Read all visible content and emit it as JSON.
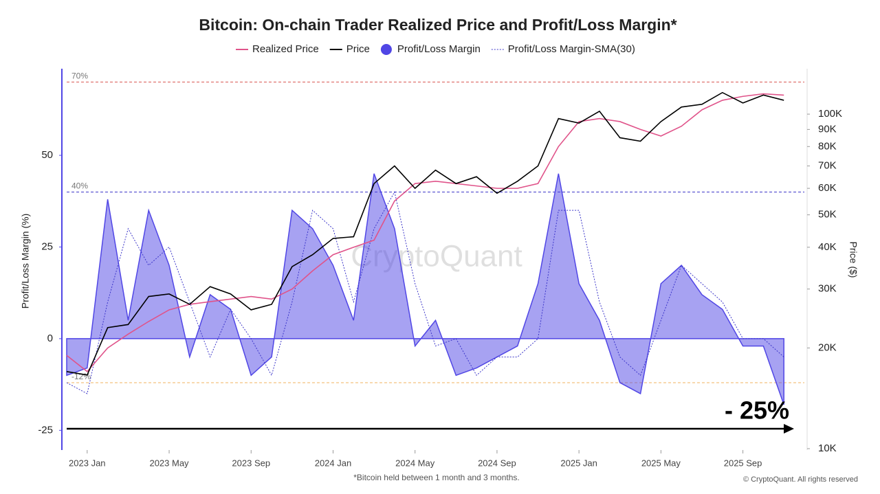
{
  "chart_data": {
    "type": "line",
    "title": "Bitcoin: On-chain Trader Realized Price and Profit/Loss Margin*",
    "y_label": "Profit/Loss Margin (%)",
    "y2_label": "Price ($)",
    "footnote": "*Bitcoin held between 1 month and 3 months.",
    "copyright": "© CryptoQuant. All rights reserved",
    "watermark": "CryptoQuant",
    "annotation": "- 25%",
    "x": [
      "2022-12",
      "2023-01",
      "2023-02",
      "2023-03",
      "2023-04",
      "2023-05",
      "2023-06",
      "2023-07",
      "2023-08",
      "2023-09",
      "2023-10",
      "2023-11",
      "2023-12",
      "2024-01",
      "2024-02",
      "2024-03",
      "2024-04",
      "2024-05",
      "2024-06",
      "2024-07",
      "2024-08",
      "2024-09",
      "2024-10",
      "2024-11",
      "2024-12",
      "2025-01",
      "2025-02",
      "2025-03",
      "2025-04",
      "2025-05",
      "2025-06",
      "2025-07",
      "2025-08",
      "2025-09",
      "2025-10",
      "2025-11"
    ],
    "xlim": [
      "2022-12",
      "2025-12"
    ],
    "xticks": [
      {
        "value": "2023-01",
        "label": "2023 Jan"
      },
      {
        "value": "2023-05",
        "label": "2023 May"
      },
      {
        "value": "2023-09",
        "label": "2023 Sep"
      },
      {
        "value": "2024-01",
        "label": "2024 Jan"
      },
      {
        "value": "2024-05",
        "label": "2024 May"
      },
      {
        "value": "2024-09",
        "label": "2024 Sep"
      },
      {
        "value": "2025-01",
        "label": "2025 Jan"
      },
      {
        "value": "2025-05",
        "label": "2025 May"
      },
      {
        "value": "2025-09",
        "label": "2025 Sep"
      }
    ],
    "ylim": [
      -30,
      74
    ],
    "yticks": [
      -25,
      0,
      25,
      50
    ],
    "y2lim": [
      10000,
      138000
    ],
    "y2_log": true,
    "y2ticks": [
      {
        "value": 10000,
        "label": "10K"
      },
      {
        "value": 20000,
        "label": "20K"
      },
      {
        "value": 30000,
        "label": "30K"
      },
      {
        "value": 40000,
        "label": "40K"
      },
      {
        "value": 50000,
        "label": "50K"
      },
      {
        "value": 60000,
        "label": "60K"
      },
      {
        "value": 70000,
        "label": "70K"
      },
      {
        "value": 80000,
        "label": "80K"
      },
      {
        "value": 90000,
        "label": "90K"
      },
      {
        "value": 100000,
        "label": "100K"
      }
    ],
    "reference_lines": [
      {
        "value": 70,
        "label": "70%",
        "color": "#d9534f"
      },
      {
        "value": 40,
        "label": "40%",
        "color": "#3b35c9"
      },
      {
        "value": -12,
        "label": "-12%",
        "color": "#f0b35e"
      }
    ],
    "series": [
      {
        "name": "Realized Price",
        "color": "#e0538a",
        "style": "line",
        "axis": "y2",
        "values": [
          19000,
          17000,
          20000,
          22000,
          24000,
          26000,
          27000,
          27500,
          28000,
          28500,
          28000,
          30000,
          34000,
          38000,
          40000,
          42000,
          55000,
          62000,
          63000,
          62000,
          61000,
          60000,
          60000,
          62000,
          80000,
          95000,
          97000,
          95000,
          90000,
          86000,
          92000,
          103000,
          110000,
          113000,
          115000,
          114000
        ]
      },
      {
        "name": "Price",
        "color": "#000000",
        "style": "line",
        "axis": "y2",
        "values": [
          17000,
          16600,
          23000,
          23500,
          28500,
          29000,
          27000,
          30500,
          29000,
          26000,
          27000,
          35000,
          38000,
          42500,
          43000,
          62000,
          70000,
          60000,
          68000,
          62000,
          65000,
          58000,
          63000,
          70000,
          97000,
          94000,
          102000,
          85000,
          83000,
          95000,
          105000,
          107000,
          116000,
          108000,
          114000,
          110000
        ]
      },
      {
        "name": "Profit/Loss Margin",
        "color": "#5046e5",
        "style": "area",
        "values": [
          -10,
          -8,
          38,
          5,
          35,
          20,
          -5,
          12,
          8,
          -10,
          -5,
          35,
          30,
          20,
          5,
          45,
          30,
          -2,
          5,
          -10,
          -8,
          -5,
          -2,
          15,
          45,
          15,
          5,
          -12,
          -15,
          15,
          20,
          12,
          8,
          -2,
          -2,
          -18
        ]
      },
      {
        "name": "Profit/Loss Margin-SMA(30)",
        "color": "#3b35c9",
        "style": "dashed",
        "values": [
          -12,
          -15,
          10,
          30,
          20,
          25,
          10,
          -5,
          8,
          0,
          -10,
          10,
          35,
          30,
          10,
          30,
          40,
          15,
          -2,
          0,
          -10,
          -5,
          -5,
          0,
          35,
          35,
          10,
          -5,
          -10,
          5,
          20,
          15,
          10,
          0,
          0,
          -5
        ]
      }
    ]
  }
}
